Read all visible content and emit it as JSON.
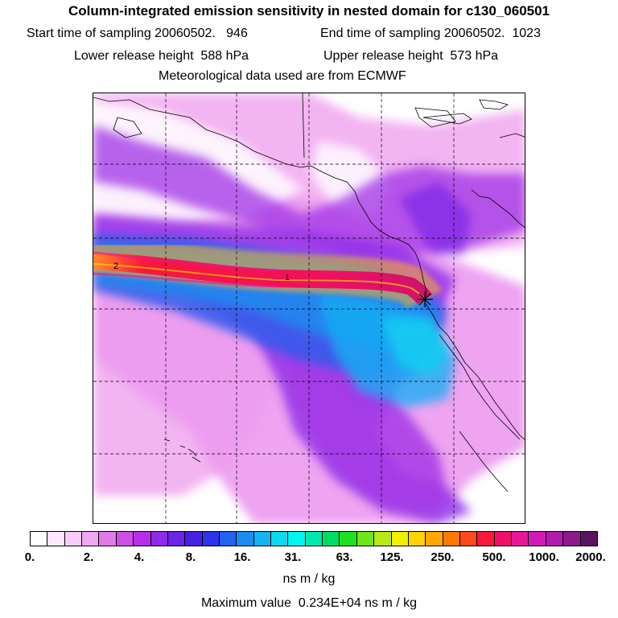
{
  "title": "Column-integrated emission sensitivity in nested domain for c130_060501",
  "lines": {
    "start": "Start time of sampling 20060502.   946",
    "end": "End time of sampling 20060502.  1023",
    "lower": "Lower release height  588 hPa",
    "upper": "Upper release height  573 hPa",
    "met": "Meteorological data used are from ECMWF"
  },
  "contour_labels": [
    "2",
    "1"
  ],
  "colorbar": {
    "colors": [
      "#ffffff",
      "#fde8fd",
      "#f8ccf8",
      "#f0a8f0",
      "#e27ae8",
      "#cf4ee6",
      "#b62ee8",
      "#8f2ae8",
      "#6a25e6",
      "#4621e4",
      "#2e34e8",
      "#1f63ee",
      "#1b8cf2",
      "#14b3f4",
      "#0fd8f2",
      "#00f5f0",
      "#00e8b0",
      "#00dd66",
      "#20df20",
      "#72e41a",
      "#b8ea18",
      "#f0f000",
      "#ffd400",
      "#ffa800",
      "#ff7a00",
      "#ff4a1a",
      "#f8183a",
      "#f0106a",
      "#e6189a",
      "#d21ab8",
      "#b41ab0",
      "#8c1a8c",
      "#5a1460"
    ],
    "tick_labels": [
      "0.",
      "2.",
      "4.",
      "8.",
      "16.",
      "31.",
      "63.",
      "125.",
      "250.",
      "500.",
      "1000.",
      "2000."
    ]
  },
  "units": "ns m / kg",
  "max_value": "Maximum value  0.234E+04 ns m / kg"
}
